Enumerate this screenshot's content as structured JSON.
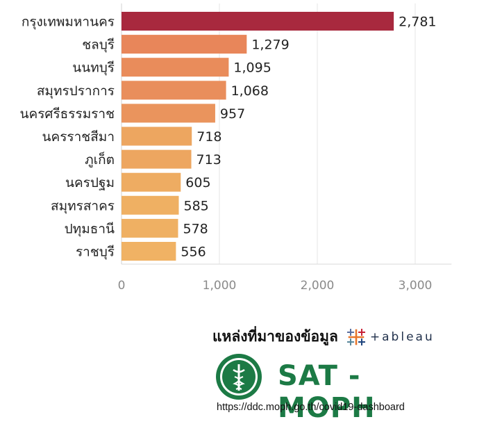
{
  "chart_data": {
    "type": "bar",
    "orientation": "horizontal",
    "categories": [
      "กรุงเทพมหานคร",
      "ชลบุรี",
      "นนทบุรี",
      "สมุทรปราการ",
      "นครศรีธรรมราช",
      "นครราชสีมา",
      "ภูเก็ต",
      "นครปฐม",
      "สมุทรสาคร",
      "ปทุมธานี",
      "ราชบุรี"
    ],
    "values": [
      2781,
      1279,
      1095,
      1068,
      957,
      718,
      713,
      605,
      585,
      578,
      556
    ],
    "value_labels": [
      "2,781",
      "1,279",
      "1,095",
      "1,068",
      "957",
      "718",
      "713",
      "605",
      "585",
      "578",
      "556"
    ],
    "bar_colors": [
      "#a8293e",
      "#e8865a",
      "#e98c5b",
      "#e98e5c",
      "#ea945d",
      "#eda660",
      "#eda660",
      "#eeac62",
      "#efb063",
      "#efb063",
      "#f0b264"
    ],
    "xlim": [
      0,
      3300
    ],
    "xticks": [
      0,
      1000,
      2000,
      3000
    ],
    "xtick_labels": [
      "0",
      "1,000",
      "2,000",
      "3,000"
    ],
    "title": "",
    "xlabel": "",
    "ylabel": "",
    "grid": true
  },
  "footer": {
    "source_label": "แหล่งที่มาของข้อมูล",
    "tableau_text": "+ableau",
    "org_name": "SAT - MOPH",
    "url": "https://ddc.moph.go.th/covid19-dashboard"
  },
  "colors": {
    "org_green": "#1c7a45",
    "accent_red": "#a8293e"
  }
}
